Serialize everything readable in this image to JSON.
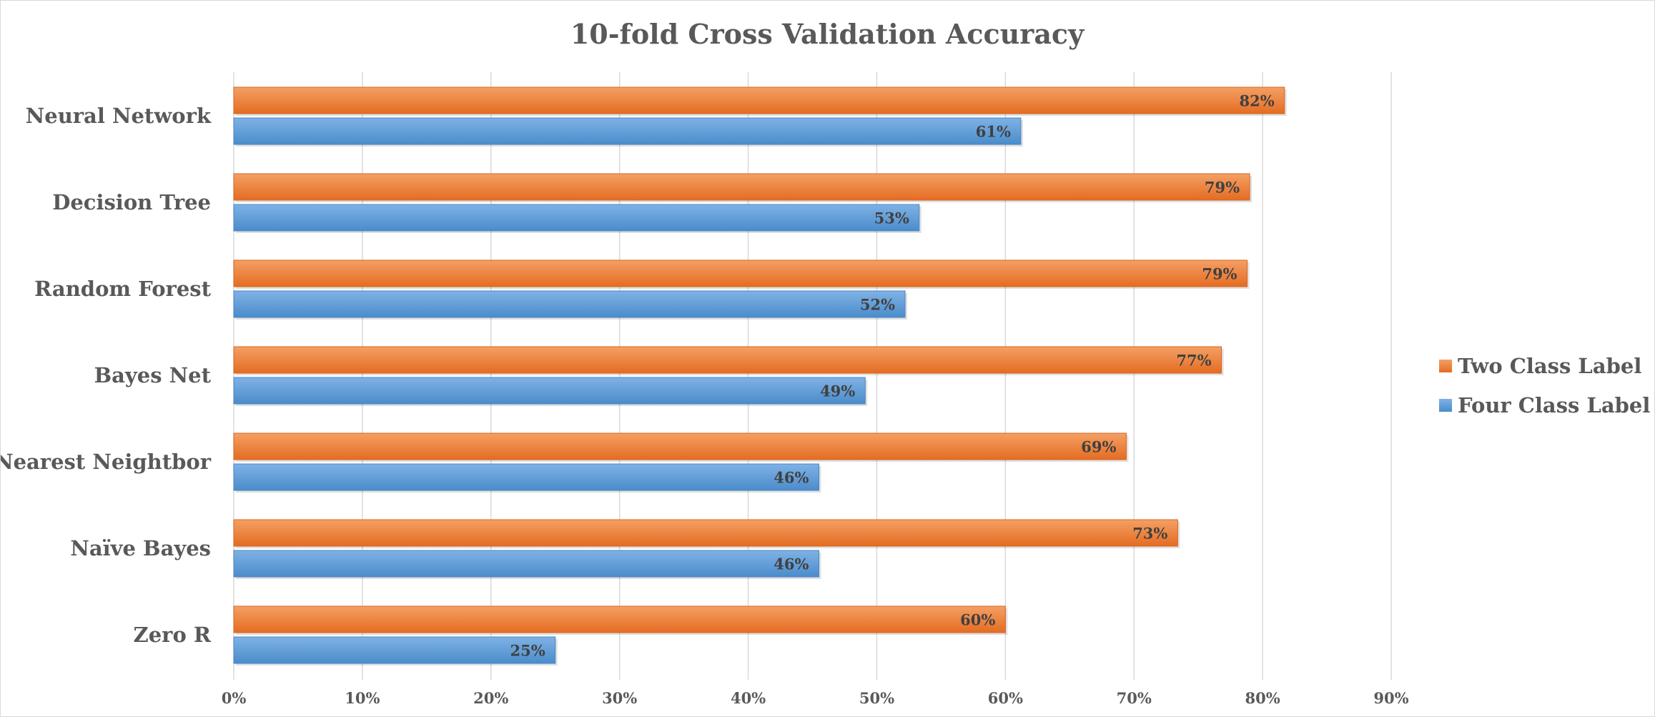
{
  "chart_data": {
    "type": "bar",
    "orientation": "horizontal",
    "title": "10-fold Cross Validation Accuracy",
    "xlabel": "",
    "ylabel": "",
    "categories": [
      "Neural Network",
      "Decision Tree",
      "Random Forest",
      "Bayes Net",
      "Nearest Neightbor",
      "Naïve Bayes",
      "Zero R"
    ],
    "series": [
      {
        "name": "Two Class Label",
        "color": "#ED7D31",
        "values": [
          0.817,
          0.79,
          0.788,
          0.768,
          0.694,
          0.734,
          0.6
        ],
        "labels": [
          "82%",
          "79%",
          "79%",
          "77%",
          "69%",
          "73%",
          "60%"
        ]
      },
      {
        "name": "Four Class Label",
        "color": "#5B9BD5",
        "values": [
          0.612,
          0.533,
          0.522,
          0.491,
          0.455,
          0.455,
          0.25
        ],
        "labels": [
          "61%",
          "53%",
          "52%",
          "49%",
          "46%",
          "46%",
          "25%"
        ]
      }
    ],
    "xlim": [
      0,
      0.9
    ],
    "x_ticks": [
      0,
      0.1,
      0.2,
      0.3,
      0.4,
      0.5,
      0.6,
      0.7,
      0.8,
      0.9
    ],
    "x_tick_labels": [
      "0%",
      "10%",
      "20%",
      "30%",
      "40%",
      "50%",
      "60%",
      "70%",
      "80%",
      "90%"
    ],
    "grid": true,
    "legend_position": "right"
  }
}
